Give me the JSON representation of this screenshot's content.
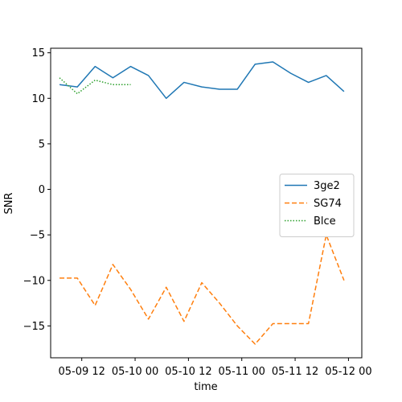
{
  "chart_data": {
    "type": "line",
    "title": "",
    "xlabel": "time",
    "ylabel": "SNR",
    "x_tick_labels": [
      "05-09 12",
      "05-10 00",
      "05-10 12",
      "05-11 00",
      "05-11 12",
      "05-12 00"
    ],
    "y_tick_labels": [
      "15",
      "10",
      "5",
      "0",
      "−5",
      "−10",
      "−15"
    ],
    "ylim": [
      -18.5,
      15.5
    ],
    "xlim": [
      "05-09 05:00",
      "05-12 03:00"
    ],
    "legend_position": "center-right",
    "series": [
      {
        "name": "3ge2",
        "color": "#1f77b4",
        "style": "solid",
        "x": [
          "05-09 07:00",
          "05-09 11:00",
          "05-09 15:00",
          "05-09 19:00",
          "05-09 23:00",
          "05-10 03:00",
          "05-10 07:00",
          "05-10 11:00",
          "05-10 15:00",
          "05-10 19:00",
          "05-10 23:00",
          "05-11 03:00",
          "05-11 07:00",
          "05-11 11:00",
          "05-11 15:00",
          "05-11 19:00",
          "05-11 23:00"
        ],
        "y": [
          11.5,
          11.25,
          13.5,
          12.25,
          13.5,
          12.5,
          10.0,
          11.75,
          11.25,
          11.0,
          11.0,
          13.75,
          14.0,
          12.75,
          11.75,
          12.5,
          10.75
        ]
      },
      {
        "name": "SG74",
        "color": "#ff7f0e",
        "style": "dashed",
        "x": [
          "05-09 07:00",
          "05-09 11:00",
          "05-09 15:00",
          "05-09 19:00",
          "05-09 23:00",
          "05-10 03:00",
          "05-10 07:00",
          "05-10 11:00",
          "05-10 15:00",
          "05-10 19:00",
          "05-10 23:00",
          "05-11 03:00",
          "05-11 07:00",
          "05-11 11:00",
          "05-11 15:00",
          "05-11 19:00",
          "05-11 23:00"
        ],
        "y": [
          -9.75,
          -9.75,
          -12.75,
          -8.25,
          -11.0,
          -14.25,
          -10.75,
          -14.5,
          -10.25,
          -12.5,
          -15.0,
          -17.0,
          -14.75,
          -14.75,
          -14.75,
          -5.0,
          -10.0
        ]
      },
      {
        "name": "Blce",
        "color": "#2ca02c",
        "style": "dotted",
        "x": [
          "05-09 07:00",
          "05-09 11:00",
          "05-09 15:00",
          "05-09 19:00",
          "05-09 23:00"
        ],
        "y": [
          12.25,
          10.5,
          12.0,
          11.5,
          11.5
        ]
      }
    ]
  }
}
